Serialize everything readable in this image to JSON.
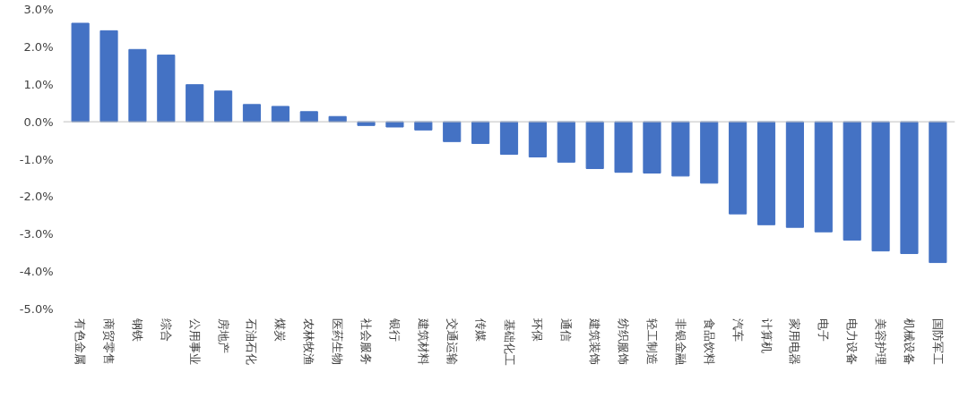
{
  "chart_data": {
    "type": "bar",
    "categories": [
      "有色金属",
      "商贸零售",
      "钢铁",
      "综合",
      "公用事业",
      "房地产",
      "石油石化",
      "煤炭",
      "农林牧渔",
      "医药生物",
      "社会服务",
      "银行",
      "建筑材料",
      "交通运输",
      "传媒",
      "基础化工",
      "环保",
      "通信",
      "建筑装饰",
      "纺织服饰",
      "轻工制造",
      "非银金融",
      "食品饮料",
      "汽车",
      "计算机",
      "家用电器",
      "电子",
      "电力设备",
      "美容护理",
      "机械设备",
      "国防军工"
    ],
    "values": [
      2.63,
      2.43,
      1.93,
      1.78,
      0.99,
      0.82,
      0.46,
      0.41,
      0.27,
      0.14,
      -0.1,
      -0.14,
      -0.22,
      -0.53,
      -0.58,
      -0.87,
      -0.94,
      -1.08,
      -1.25,
      -1.35,
      -1.37,
      -1.45,
      -1.64,
      -2.46,
      -2.75,
      -2.82,
      -2.94,
      -3.16,
      -3.45,
      -3.52,
      -3.76
    ],
    "color": "#4472c4",
    "ylim": [
      -5,
      3
    ],
    "yticks": [
      {
        "value": 3,
        "label": "3.0%"
      },
      {
        "value": 2,
        "label": "2.0%"
      },
      {
        "value": 1,
        "label": "1.0%"
      },
      {
        "value": 0,
        "label": "0.0%"
      },
      {
        "value": -1,
        "label": "-1.0%"
      },
      {
        "value": -2,
        "label": "-2.0%"
      },
      {
        "value": -3,
        "label": "-3.0%"
      },
      {
        "value": -4,
        "label": "-4.0%"
      },
      {
        "value": -5,
        "label": "-5.0%"
      }
    ],
    "ref_lines": [
      {
        "axis": "y",
        "value": 0,
        "color": "#bfbfbf"
      }
    ]
  }
}
